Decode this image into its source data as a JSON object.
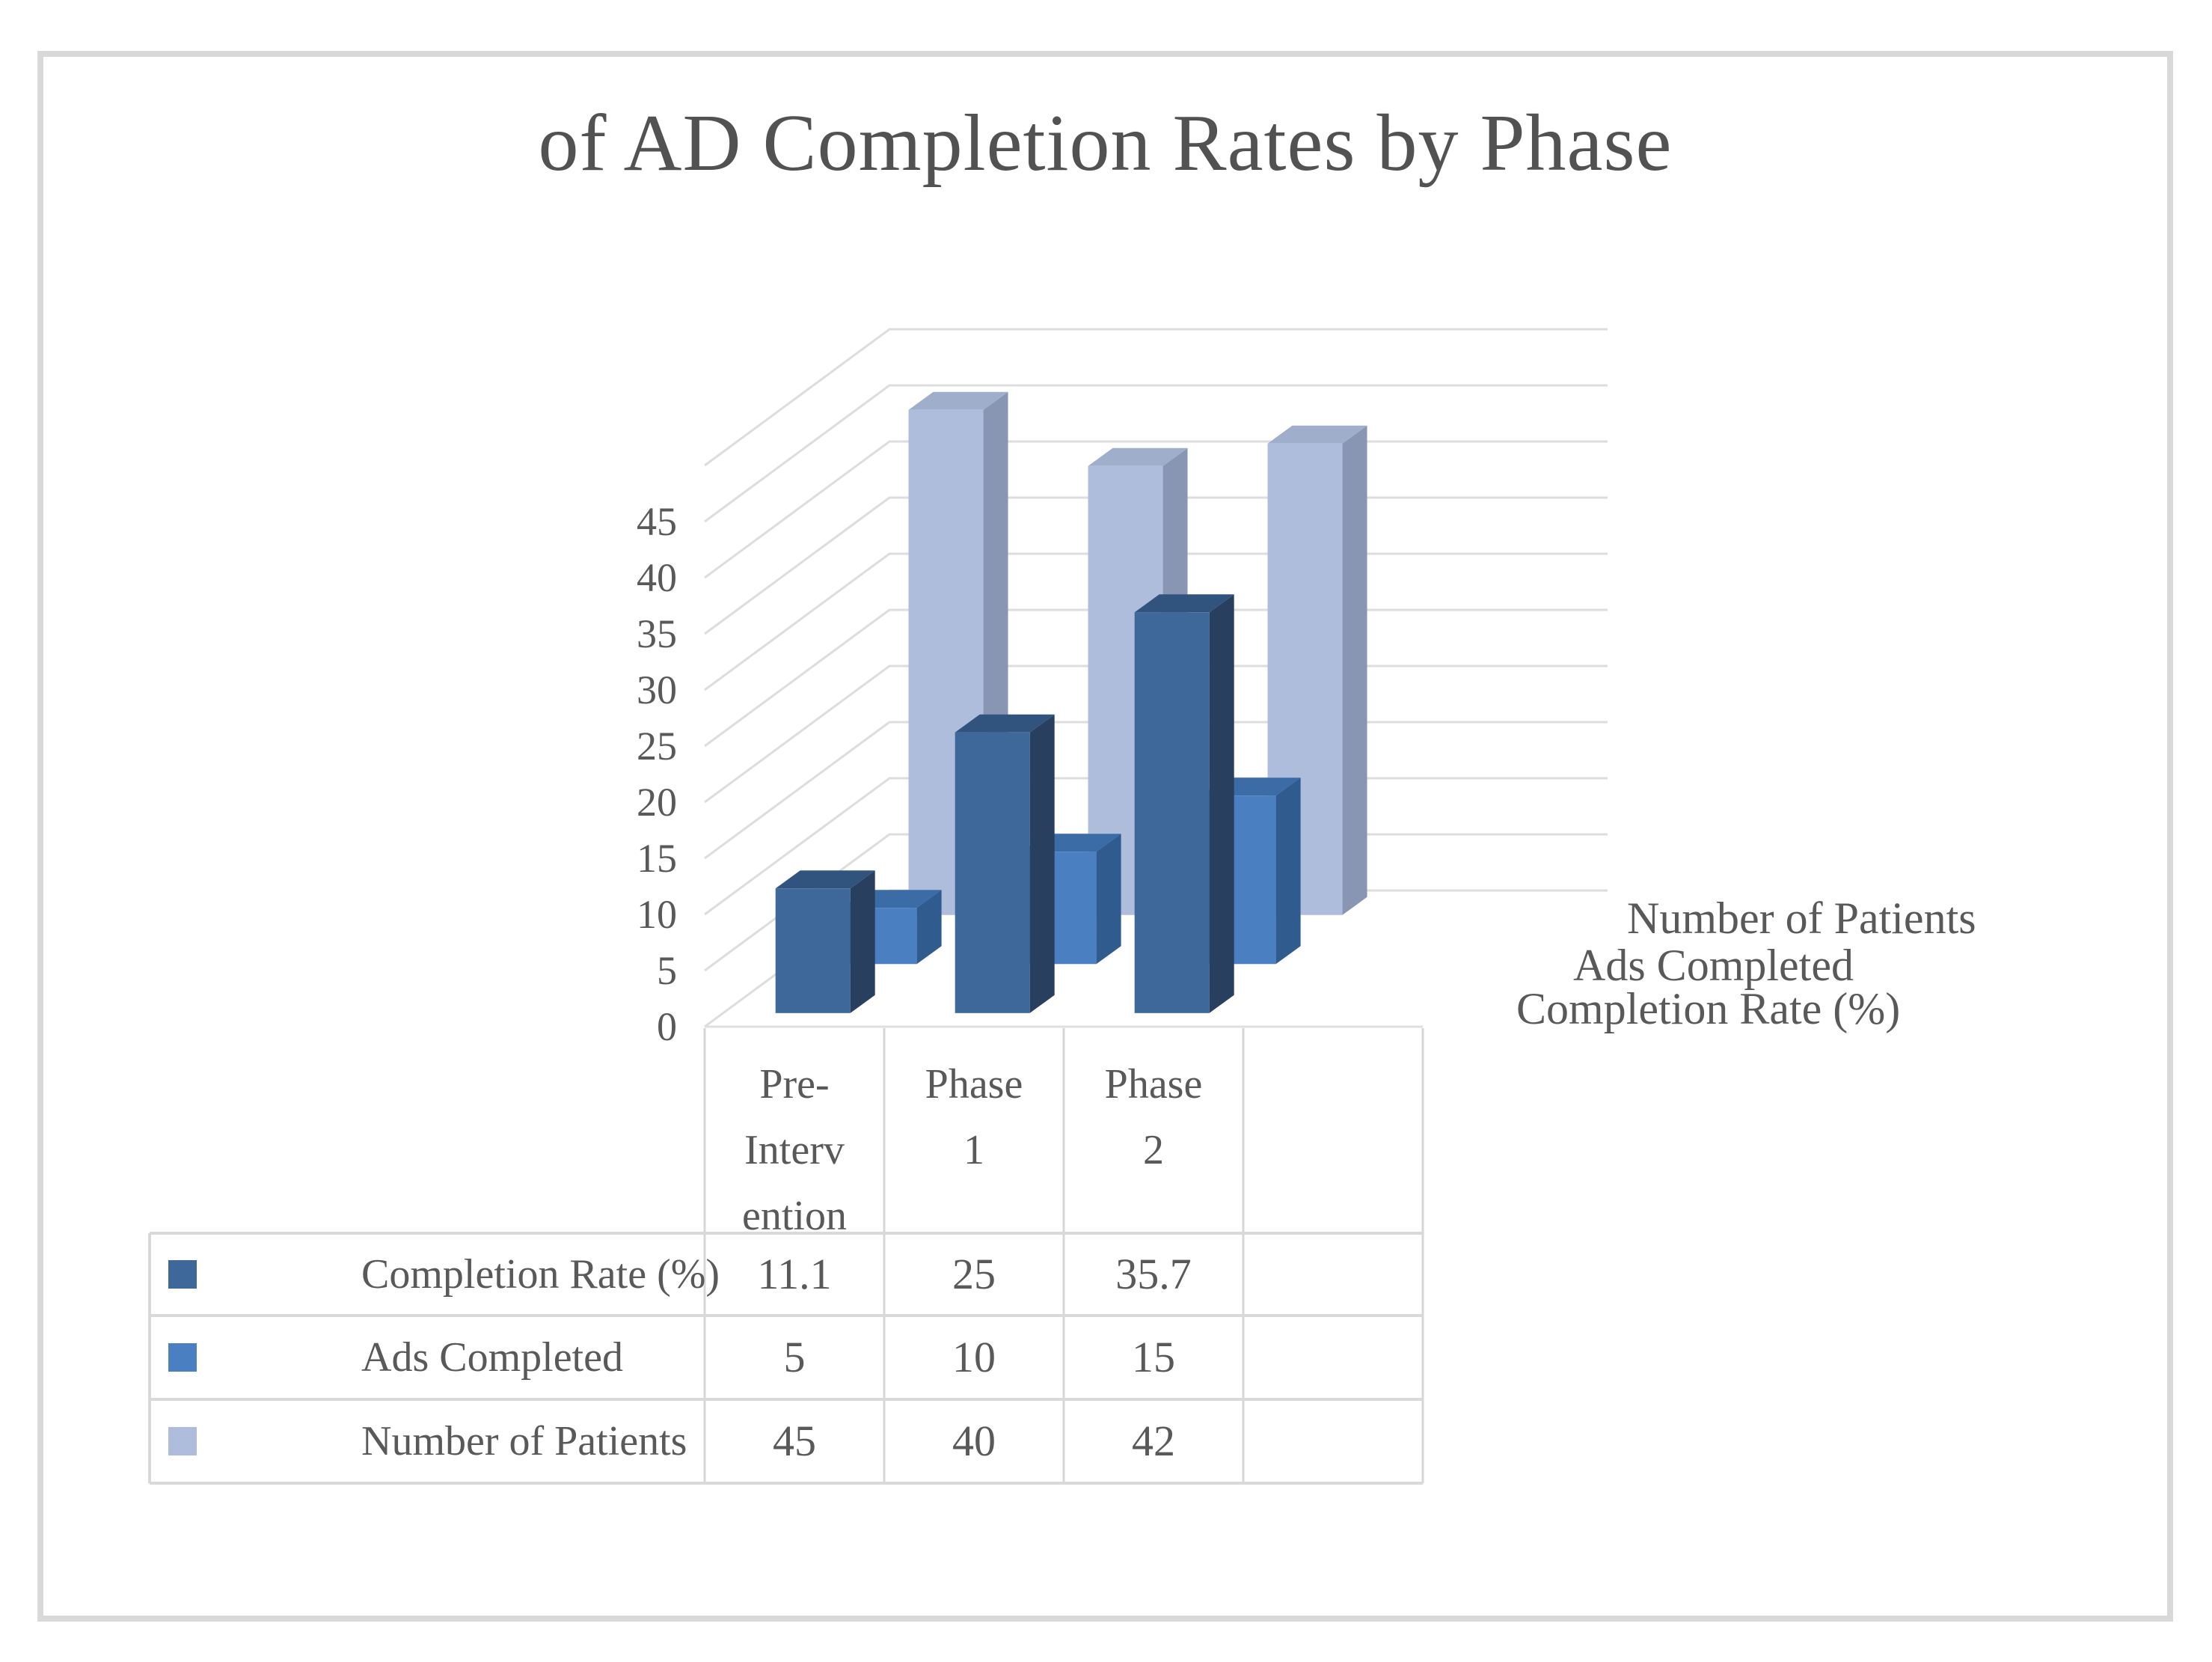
{
  "page": {
    "background": "#ffffff",
    "frame_border_color": "#d9d9d9"
  },
  "chart_data": {
    "type": "bar",
    "variant": "3d-clustered-column",
    "title": "of AD Completion Rates by Phase",
    "categories": [
      "Pre-Intervention",
      "Phase 1",
      "Phase 2"
    ],
    "categories_display": [
      "Pre-\nInterv\nention",
      "Phase\n1",
      "Phase\n2"
    ],
    "series": [
      {
        "name": "Completion Rate (%)",
        "values": [
          11.1,
          25,
          35.7
        ],
        "color": "#3E6899",
        "color_side": "#283F60",
        "color_top": "#31547E"
      },
      {
        "name": "Ads Completed",
        "values": [
          5,
          10,
          15
        ],
        "color": "#4A80C2",
        "color_side": "#2F5B8E",
        "color_top": "#3C6CA6"
      },
      {
        "name": "Number of Patients",
        "values": [
          45,
          40,
          42
        ],
        "color": "#AEBDDC",
        "color_side": "#8896B4",
        "color_top": "#9FAECB"
      }
    ],
    "depth_axis_labels": [
      "Number of Patients",
      "Ads Completed",
      "Completion Rate (%)"
    ],
    "value_axis": {
      "min": 0,
      "max": 50,
      "step": 5,
      "tick_labels": [
        "0",
        "5",
        "10",
        "15",
        "20",
        "25",
        "30",
        "35",
        "40",
        "45"
      ]
    },
    "grid": true,
    "legend_position": "data-table-left",
    "data_table": {
      "has_empty_fourth_column": true,
      "empty_cell_text": ""
    },
    "colors": {
      "gridline": "#dddddd",
      "axis_line": "#d9d9d9",
      "table_border": "#d6d6d6",
      "text": "#595959",
      "title_text": "#525252"
    }
  }
}
